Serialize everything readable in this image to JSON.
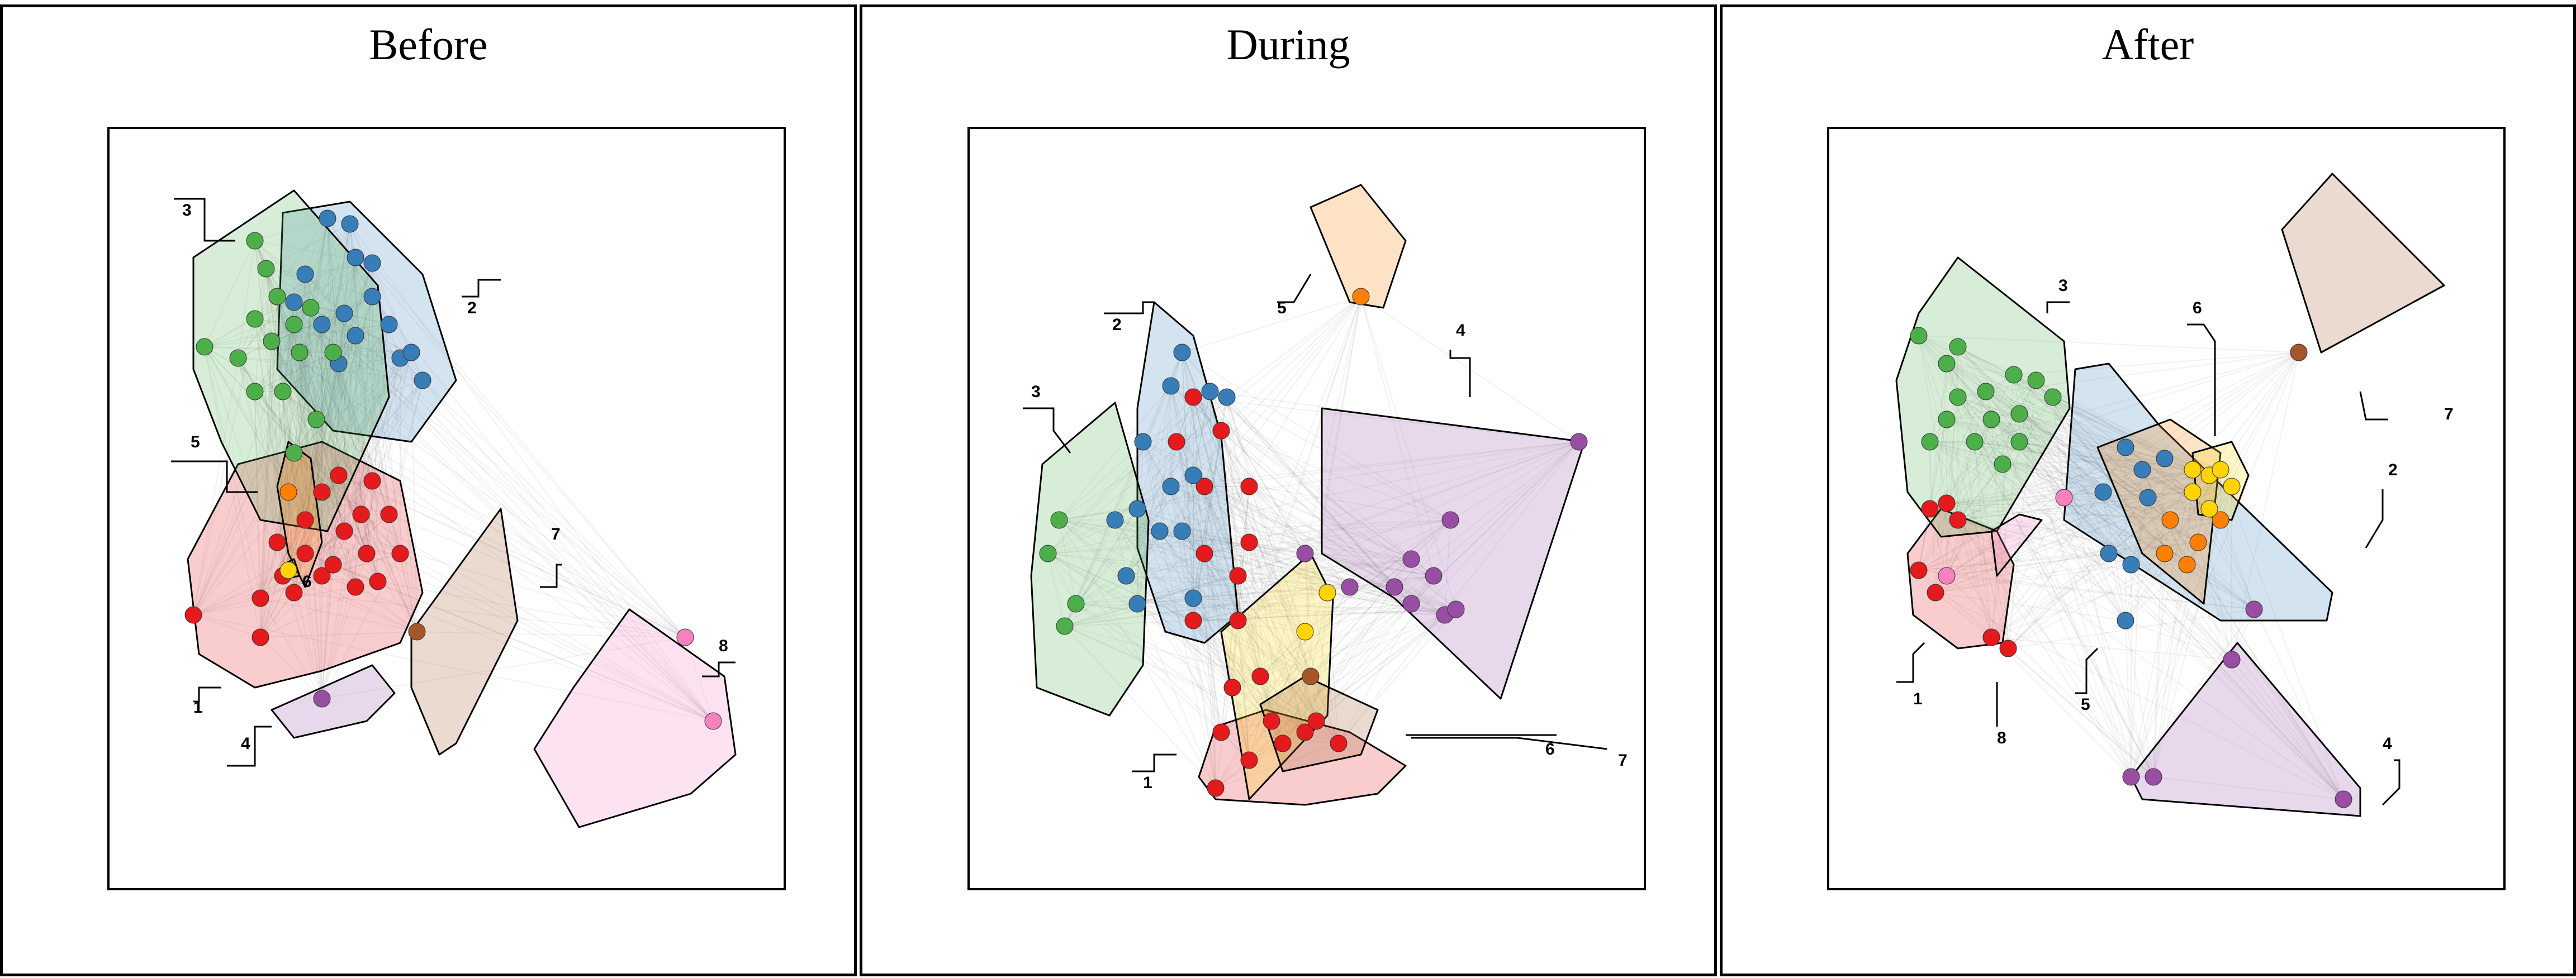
{
  "panels": [
    {
      "title": "Before",
      "clusters": [
        {
          "label": "1",
          "color": "#e41a1c"
        },
        {
          "label": "2",
          "color": "#377eb8"
        },
        {
          "label": "3",
          "color": "#4daf4a"
        },
        {
          "label": "4",
          "color": "#984ea3"
        },
        {
          "label": "5",
          "color": "#ff7f00"
        },
        {
          "label": "6",
          "color": "#ffd400"
        },
        {
          "label": "7",
          "color": "#a65628"
        },
        {
          "label": "8",
          "color": "#f781bf"
        }
      ]
    },
    {
      "title": "During",
      "clusters": [
        {
          "label": "1",
          "color": "#e41a1c"
        },
        {
          "label": "2",
          "color": "#377eb8"
        },
        {
          "label": "3",
          "color": "#4daf4a"
        },
        {
          "label": "4",
          "color": "#984ea3"
        },
        {
          "label": "5",
          "color": "#ff7f00"
        },
        {
          "label": "6",
          "color": "#ffd400"
        },
        {
          "label": "7",
          "color": "#a65628"
        }
      ]
    },
    {
      "title": "After",
      "clusters": [
        {
          "label": "1",
          "color": "#e41a1c"
        },
        {
          "label": "2",
          "color": "#377eb8"
        },
        {
          "label": "3",
          "color": "#4daf4a"
        },
        {
          "label": "4",
          "color": "#984ea3"
        },
        {
          "label": "5",
          "color": "#ff7f00"
        },
        {
          "label": "6",
          "color": "#ffd400"
        },
        {
          "label": "7",
          "color": "#a65628"
        },
        {
          "label": "8",
          "color": "#f781bf"
        }
      ]
    }
  ]
}
